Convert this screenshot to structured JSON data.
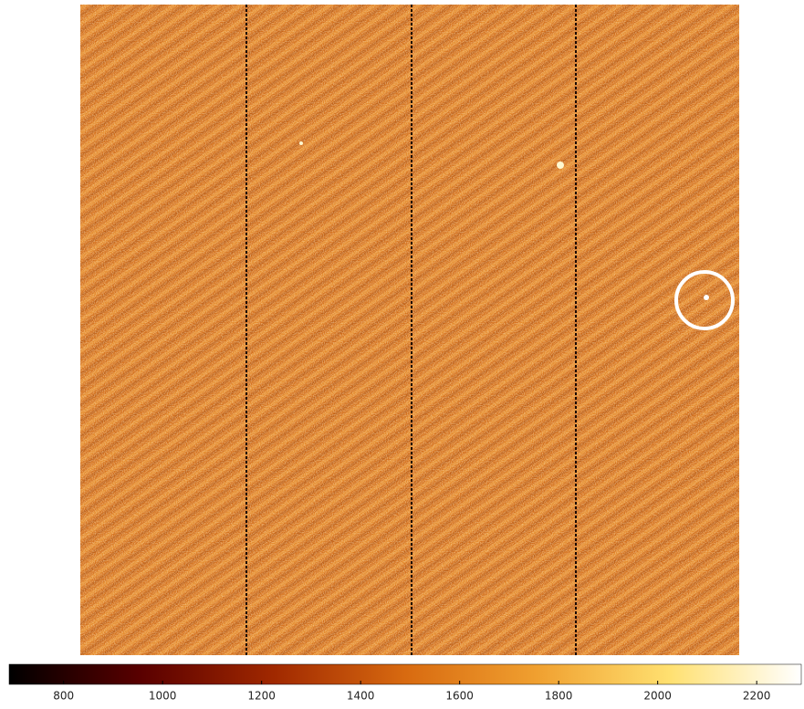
{
  "chart_data": {
    "type": "image",
    "colorbar": {
      "lim": [
        690,
        2290
      ],
      "ticks": [
        800,
        1000,
        1200,
        1400,
        1600,
        1800,
        2000,
        2200
      ],
      "colormap": [
        "#000000",
        "#5a0000",
        "#a02800",
        "#d86a10",
        "#f0a030",
        "#ffe070",
        "#ffffff"
      ]
    }
  }
}
